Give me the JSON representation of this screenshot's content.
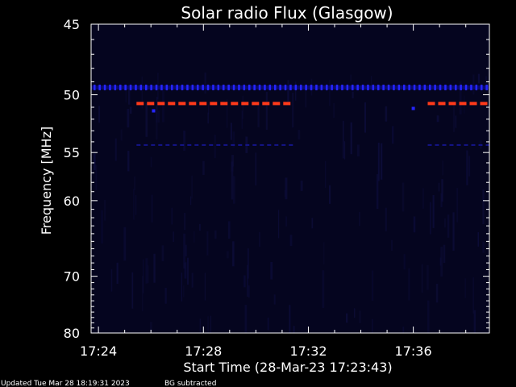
{
  "chart_data": {
    "type": "heatmap",
    "title": "Solar radio Flux (Glasgow)",
    "xlabel": "Start Time (28-Mar-23 17:23:43)",
    "ylabel": "Frequency [MHz]",
    "y_ticks": [
      45,
      50,
      55,
      60,
      70,
      80
    ],
    "ylim": [
      45,
      80
    ],
    "y_scale": "reciprocal",
    "x_ticks": [
      "17:24",
      "17:28",
      "17:32",
      "17:36"
    ],
    "x_tick_minutes": [
      24,
      28,
      32,
      36
    ],
    "xlim_minutes": [
      23.72,
      38.9
    ],
    "grid": false,
    "colors": {
      "background": "#000000",
      "plot_fill": "#05051f",
      "noise": "#0d0d3a",
      "blue_band": "#2525ff",
      "red_band": "#ff3a1a",
      "axis": "#ffffff"
    },
    "bands": [
      {
        "freq_mhz": 49.4,
        "color": "blue",
        "start_minute": 23.72,
        "end_minute": 38.9
      },
      {
        "freq_mhz": 50.7,
        "color": "red",
        "start_minute": 25.45,
        "end_minute": 31.45
      },
      {
        "freq_mhz": 50.7,
        "color": "red",
        "start_minute": 36.55,
        "end_minute": 38.9
      },
      {
        "freq_mhz": 54.3,
        "color": "dark-blue",
        "start_minute": 25.45,
        "end_minute": 31.45
      },
      {
        "freq_mhz": 54.3,
        "color": "dark-blue",
        "start_minute": 36.55,
        "end_minute": 38.9
      }
    ]
  },
  "footer": {
    "updated": "Updated Tue Mar 28 18:19:31 2023",
    "note": "BG subtracted"
  }
}
